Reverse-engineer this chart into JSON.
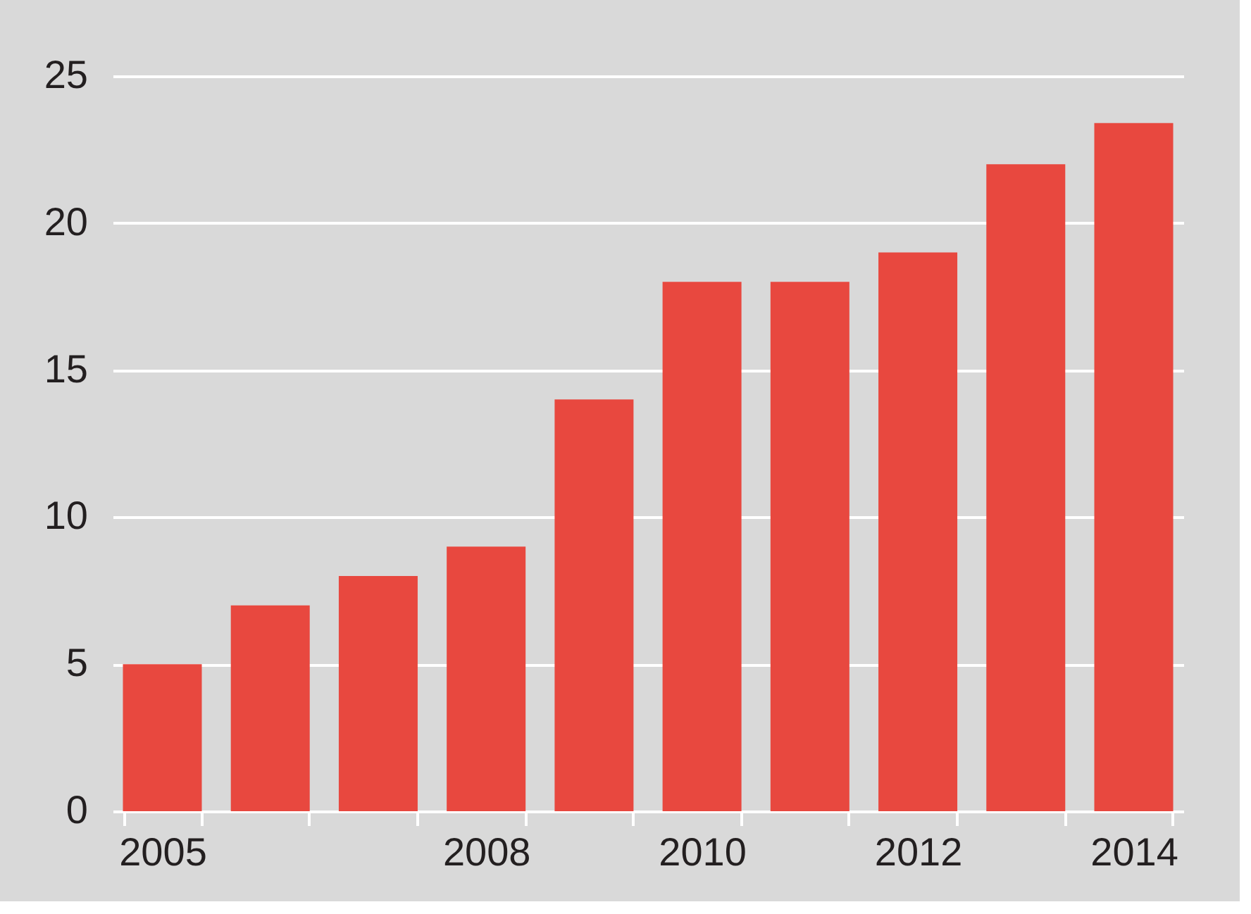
{
  "chart_data": {
    "type": "bar",
    "categories": [
      "2005",
      null,
      null,
      "2008",
      null,
      "2010",
      null,
      "2012",
      null,
      "2014"
    ],
    "values": [
      5,
      7,
      8,
      9,
      14,
      18,
      18,
      19,
      22,
      23.4
    ],
    "color": "#e8483f",
    "ylim": [
      0,
      25
    ],
    "yticks": [
      0,
      5,
      10,
      15,
      20,
      25
    ],
    "grid": "y"
  }
}
